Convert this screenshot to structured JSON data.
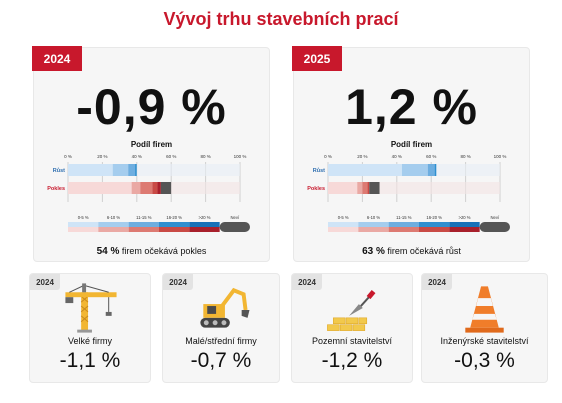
{
  "title": "Vývoj trhu stavebních prací",
  "panels": [
    {
      "year": "2024",
      "headline": "-0,9 %",
      "chart_title": "Podíl firem",
      "summary_bold": "54 %",
      "summary_text": "firem očekává pokles"
    },
    {
      "year": "2025",
      "headline": "1,2 %",
      "chart_title": "Podíl firem",
      "summary_bold": "63 %",
      "summary_text": "firem očekává růst"
    }
  ],
  "chart_data": [
    {
      "type": "bar",
      "orientation": "horizontal",
      "stacked": true,
      "categories": [
        "Růst",
        "Pokles"
      ],
      "xlim": [
        0,
        100
      ],
      "x_ticks": [
        "0 %",
        "20 %",
        "40 %",
        "60 %",
        "80 %",
        "100 %"
      ],
      "segments": [
        "0-5 %",
        "6-10 %",
        "11-15 %",
        "16-20 %",
        ">20 %",
        "Neví"
      ],
      "series": [
        {
          "name": "0-5 %",
          "values": [
            26,
            37
          ]
        },
        {
          "name": "6-10 %",
          "values": [
            9,
            5
          ]
        },
        {
          "name": "11-15 %",
          "values": [
            4,
            7
          ]
        },
        {
          "name": "16-20 %",
          "values": [
            1,
            3
          ]
        },
        {
          "name": ">20 %",
          "values": [
            0,
            2
          ]
        },
        {
          "name": "Neví",
          "values": [
            0,
            6
          ]
        }
      ]
    },
    {
      "type": "bar",
      "orientation": "horizontal",
      "stacked": true,
      "categories": [
        "Růst",
        "Pokles"
      ],
      "xlim": [
        0,
        100
      ],
      "x_ticks": [
        "0 %",
        "20 %",
        "40 %",
        "60 %",
        "80 %",
        "100 %"
      ],
      "segments": [
        "0-5 %",
        "6-10 %",
        "11-15 %",
        "16-20 %",
        ">20 %",
        "Neví"
      ],
      "series": [
        {
          "name": "0-5 %",
          "values": [
            43,
            17
          ]
        },
        {
          "name": "6-10 %",
          "values": [
            15,
            3
          ]
        },
        {
          "name": "11-15 %",
          "values": [
            4,
            3
          ]
        },
        {
          "name": "16-20 %",
          "values": [
            1,
            1
          ]
        },
        {
          "name": ">20 %",
          "values": [
            0,
            0
          ]
        },
        {
          "name": "Neví",
          "values": [
            0,
            6
          ]
        }
      ]
    }
  ],
  "colors": {
    "grow": [
      "#cfe4f7",
      "#a5cdee",
      "#6eaee0",
      "#2f8fd0",
      "#1671b8"
    ],
    "fall": [
      "#f7d9d8",
      "#eaa9a4",
      "#dd7a72",
      "#c94a45",
      "#a8202c"
    ],
    "unknown": "#555555",
    "accent": "#c8182c"
  },
  "sectors": [
    {
      "year": "2024",
      "label": "Velké firmy",
      "value": "-1,1 %",
      "icon": "crane-icon"
    },
    {
      "year": "2024",
      "label": "Malé/střední firmy",
      "value": "-0,7 %",
      "icon": "excavator-icon"
    },
    {
      "year": "2024",
      "label": "Pozemní stavitelství",
      "value": "-1,2 %",
      "icon": "bricks-trowel-icon"
    },
    {
      "year": "2024",
      "label": "Inženýrské stavitelství",
      "value": "-0,3 %",
      "icon": "traffic-cone-icon"
    }
  ]
}
